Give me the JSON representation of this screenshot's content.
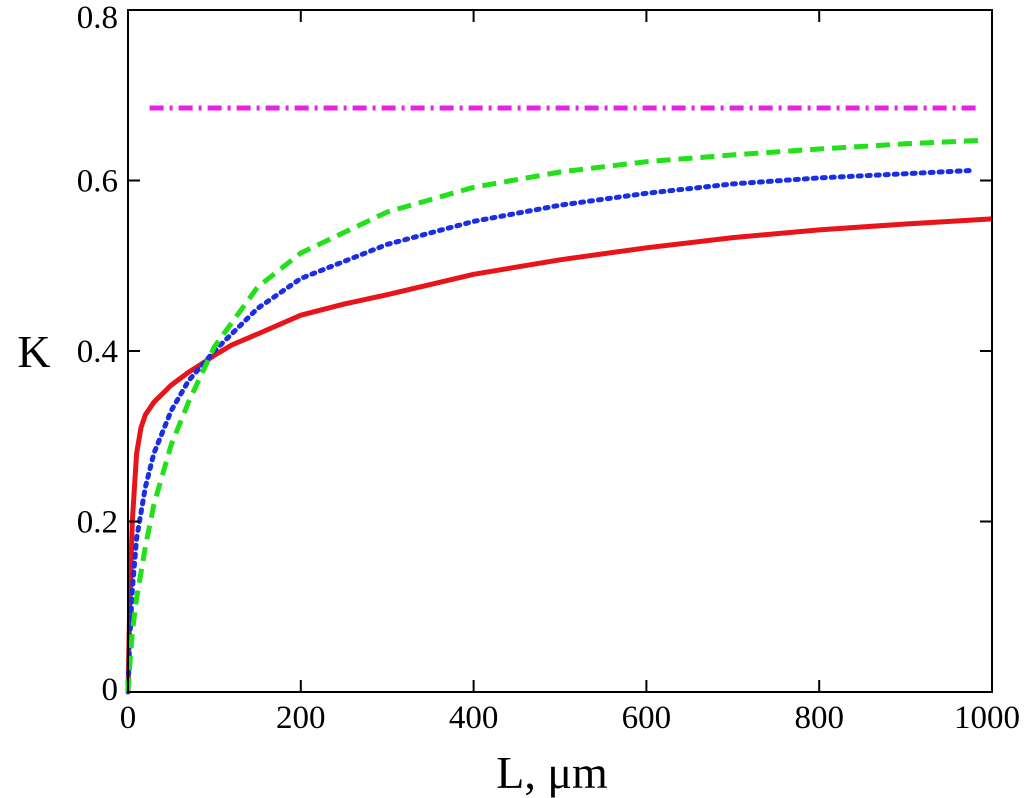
{
  "chart_data": {
    "type": "line",
    "xlabel": "L, μm",
    "ylabel": "K",
    "xlim": [
      0,
      1000
    ],
    "ylim": [
      0,
      0.8
    ],
    "xticks": [
      0,
      200,
      400,
      600,
      800,
      1000
    ],
    "yticks": [
      0,
      0.2,
      0.4,
      0.6,
      0.8
    ],
    "xtick_labels": [
      "0",
      "200",
      "400",
      "600",
      "800",
      "1000"
    ],
    "ytick_labels": [
      "0",
      "0.2",
      "0.4",
      "0.6",
      "0.8"
    ],
    "grid": false,
    "legend": "none",
    "series": [
      {
        "color": "#e8141a",
        "style": "solid",
        "x": [
          0,
          2,
          5,
          10,
          15,
          20,
          30,
          40,
          50,
          70,
          90,
          100,
          120,
          150,
          200,
          250,
          300,
          400,
          500,
          600,
          700,
          800,
          900,
          1000
        ],
        "y": [
          0,
          0.1,
          0.2,
          0.28,
          0.31,
          0.325,
          0.34,
          0.35,
          0.36,
          0.375,
          0.388,
          0.395,
          0.407,
          0.42,
          0.442,
          0.455,
          0.466,
          0.49,
          0.507,
          0.521,
          0.533,
          0.542,
          0.549,
          0.555
        ]
      },
      {
        "color": "#1a2ee6",
        "style": "dotted",
        "x": [
          0,
          2,
          5,
          10,
          20,
          30,
          50,
          70,
          100,
          150,
          200,
          300,
          400,
          500,
          600,
          700,
          800,
          900,
          980
        ],
        "y": [
          0,
          0.06,
          0.12,
          0.18,
          0.24,
          0.28,
          0.33,
          0.365,
          0.4,
          0.45,
          0.485,
          0.525,
          0.552,
          0.571,
          0.585,
          0.596,
          0.603,
          0.608,
          0.612
        ]
      },
      {
        "color": "#22e01a",
        "style": "dashed",
        "x": [
          0,
          2,
          5,
          10,
          20,
          30,
          50,
          70,
          100,
          150,
          200,
          300,
          400,
          500,
          600,
          700,
          800,
          900,
          985
        ],
        "y": [
          0,
          0.03,
          0.07,
          0.11,
          0.17,
          0.22,
          0.29,
          0.34,
          0.405,
          0.475,
          0.515,
          0.563,
          0.592,
          0.61,
          0.622,
          0.63,
          0.637,
          0.643,
          0.647
        ]
      },
      {
        "color": "#ea1fe8",
        "style": "dashdot",
        "x": [
          25,
          985
        ],
        "y": [
          0.685,
          0.685
        ]
      }
    ]
  }
}
